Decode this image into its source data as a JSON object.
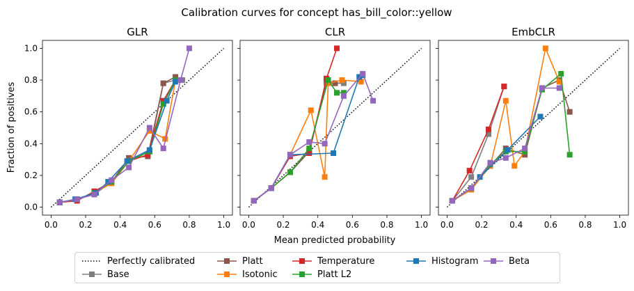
{
  "figure": {
    "title": "Calibration curves for concept has_bill_color::yellow",
    "xlabel": "Mean predicted probability",
    "ylabel": "Fraction of positives"
  },
  "colors": {
    "Perfectly calibrated": "#000000",
    "Base": "#7f7f7f",
    "Platt": "#8c564b",
    "Isotonic": "#ff7f0e",
    "Temperature": "#d62728",
    "Platt L2": "#2ca02c",
    "Histogram": "#1f77b4",
    "Beta": "#9467bd"
  },
  "legend": {
    "placement": "bottom-center",
    "entries": [
      {
        "label": "Perfectly calibrated",
        "style": "dotted"
      },
      {
        "label": "Base",
        "style": "square-line"
      },
      {
        "label": "Platt",
        "style": "square-line"
      },
      {
        "label": "Isotonic",
        "style": "square-line"
      },
      {
        "label": "Temperature",
        "style": "square-line"
      },
      {
        "label": "Platt L2",
        "style": "square-line"
      },
      {
        "label": "Histogram",
        "style": "square-line"
      },
      {
        "label": "Beta",
        "style": "square-line"
      }
    ]
  },
  "chart_data": [
    {
      "type": "line",
      "title": "GLR",
      "xlim": [
        -0.05,
        1.05
      ],
      "ylim": [
        -0.05,
        1.05
      ],
      "xticks": [
        0.0,
        0.2,
        0.4,
        0.6,
        0.8,
        1.0
      ],
      "xtick_labels": [
        "0.0",
        "0.2",
        "0.4",
        "0.6",
        "0.8",
        "1.0"
      ],
      "yticks": [
        0.0,
        0.2,
        0.4,
        0.6,
        0.8,
        1.0
      ],
      "ytick_labels": [
        "0.0",
        "0.2",
        "0.4",
        "0.6",
        "0.8",
        "1.0"
      ],
      "show_yticklabels": true,
      "grid": false,
      "reference": {
        "name": "Perfectly calibrated",
        "x": [
          0,
          1
        ],
        "y": [
          0,
          1
        ]
      },
      "series": [
        {
          "name": "Base",
          "x": [
            0.05,
            0.15,
            0.25,
            0.35,
            0.45,
            0.57,
            0.65,
            0.72,
            0.76
          ],
          "y": [
            0.03,
            0.05,
            0.08,
            0.16,
            0.29,
            0.35,
            0.78,
            0.8,
            0.8
          ]
        },
        {
          "name": "Platt",
          "x": [
            0.05,
            0.15,
            0.25,
            0.35,
            0.45,
            0.56,
            0.65,
            0.72
          ],
          "y": [
            0.03,
            0.05,
            0.09,
            0.16,
            0.31,
            0.32,
            0.78,
            0.82
          ]
        },
        {
          "name": "Isotonic",
          "x": [
            0.05,
            0.15,
            0.25,
            0.35,
            0.45,
            0.57,
            0.66,
            0.72
          ],
          "y": [
            0.03,
            0.05,
            0.09,
            0.15,
            0.29,
            0.48,
            0.43,
            0.8
          ]
        },
        {
          "name": "Temperature",
          "x": [
            0.05,
            0.15,
            0.25,
            0.35,
            0.45,
            0.56,
            0.65,
            0.72
          ],
          "y": [
            0.03,
            0.04,
            0.1,
            0.16,
            0.29,
            0.33,
            0.67,
            0.8
          ]
        },
        {
          "name": "Platt L2",
          "x": [
            0.05,
            0.15,
            0.25,
            0.35,
            0.45,
            0.57,
            0.65,
            0.72
          ],
          "y": [
            0.03,
            0.05,
            0.09,
            0.16,
            0.29,
            0.35,
            0.65,
            0.8
          ]
        },
        {
          "name": "Histogram",
          "x": [
            0.05,
            0.14,
            0.26,
            0.33,
            0.44,
            0.57,
            0.67,
            0.72
          ],
          "y": [
            0.03,
            0.05,
            0.09,
            0.16,
            0.29,
            0.36,
            0.67,
            0.79
          ]
        },
        {
          "name": "Beta",
          "x": [
            0.05,
            0.15,
            0.25,
            0.35,
            0.45,
            0.57,
            0.65,
            0.75,
            0.8
          ],
          "y": [
            0.03,
            0.05,
            0.08,
            0.17,
            0.25,
            0.5,
            0.37,
            0.8,
            1.0
          ]
        }
      ]
    },
    {
      "type": "line",
      "title": "CLR",
      "xlim": [
        -0.05,
        1.05
      ],
      "ylim": [
        -0.05,
        1.05
      ],
      "xticks": [
        0.0,
        0.2,
        0.4,
        0.6,
        0.8,
        1.0
      ],
      "xtick_labels": [
        "0.0",
        "0.2",
        "0.4",
        "0.6",
        "0.8",
        "1.0"
      ],
      "yticks": [
        0.0,
        0.2,
        0.4,
        0.6,
        0.8,
        1.0
      ],
      "ytick_labels": [
        "0.0",
        "0.2",
        "0.4",
        "0.6",
        "0.8",
        "1.0"
      ],
      "show_yticklabels": false,
      "grid": false,
      "reference": {
        "name": "Perfectly calibrated",
        "x": [
          0,
          1
        ],
        "y": [
          0,
          1
        ]
      },
      "series": [
        {
          "name": "Base",
          "x": [
            0.03,
            0.13,
            0.24,
            0.35,
            0.45,
            0.5,
            0.55
          ],
          "y": [
            0.04,
            0.12,
            0.22,
            0.35,
            0.78,
            0.78,
            0.78
          ]
        },
        {
          "name": "Platt",
          "x": [
            0.03,
            0.13,
            0.24,
            0.35,
            0.45,
            0.5
          ],
          "y": [
            0.04,
            0.12,
            0.22,
            0.35,
            0.8,
            0.78
          ]
        },
        {
          "name": "Isotonic",
          "x": [
            0.03,
            0.13,
            0.24,
            0.36,
            0.44,
            0.46,
            0.54,
            0.65
          ],
          "y": [
            0.04,
            0.12,
            0.33,
            0.61,
            0.19,
            0.78,
            0.8,
            0.79
          ]
        },
        {
          "name": "Temperature",
          "x": [
            0.03,
            0.13,
            0.24,
            0.35,
            0.45,
            0.51
          ],
          "y": [
            0.04,
            0.12,
            0.32,
            0.34,
            0.81,
            1.0
          ]
        },
        {
          "name": "Platt L2",
          "x": [
            0.03,
            0.13,
            0.24,
            0.35,
            0.46,
            0.51,
            0.55
          ],
          "y": [
            0.04,
            0.12,
            0.22,
            0.37,
            0.8,
            0.72,
            0.72
          ]
        },
        {
          "name": "Histogram",
          "x": [
            0.03,
            0.13,
            0.24,
            0.49,
            0.64,
            0.66
          ],
          "y": [
            0.04,
            0.12,
            0.33,
            0.34,
            0.82,
            0.83
          ]
        },
        {
          "name": "Beta",
          "x": [
            0.03,
            0.13,
            0.24,
            0.35,
            0.44,
            0.55,
            0.66,
            0.72
          ],
          "y": [
            0.04,
            0.12,
            0.33,
            0.41,
            0.4,
            0.7,
            0.84,
            0.67
          ]
        }
      ]
    },
    {
      "type": "line",
      "title": "EmbCLR",
      "xlim": [
        -0.05,
        1.05
      ],
      "ylim": [
        -0.05,
        1.05
      ],
      "xticks": [
        0.0,
        0.2,
        0.4,
        0.6,
        0.8,
        1.0
      ],
      "xtick_labels": [
        "0.0",
        "0.2",
        "0.4",
        "0.6",
        "0.8",
        "1.0"
      ],
      "yticks": [
        0.0,
        0.2,
        0.4,
        0.6,
        0.8,
        1.0
      ],
      "ytick_labels": [
        "0.0",
        "0.2",
        "0.4",
        "0.6",
        "0.8",
        "1.0"
      ],
      "show_yticklabels": false,
      "grid": false,
      "reference": {
        "name": "Perfectly calibrated",
        "x": [
          0,
          1
        ],
        "y": [
          0,
          1
        ]
      },
      "series": [
        {
          "name": "Base",
          "x": [
            0.03,
            0.14,
            0.24,
            0.33
          ],
          "y": [
            0.04,
            0.19,
            0.46,
            0.76
          ]
        },
        {
          "name": "Platt",
          "x": [
            0.03,
            0.14,
            0.25,
            0.34,
            0.45,
            0.55,
            0.65,
            0.71
          ],
          "y": [
            0.04,
            0.12,
            0.26,
            0.37,
            0.33,
            0.75,
            0.8,
            0.6
          ]
        },
        {
          "name": "Isotonic",
          "x": [
            0.03,
            0.14,
            0.25,
            0.34,
            0.39,
            0.45,
            0.57,
            0.65
          ],
          "y": [
            0.04,
            0.11,
            0.26,
            0.67,
            0.26,
            0.35,
            1.0,
            0.79
          ]
        },
        {
          "name": "Temperature",
          "x": [
            0.03,
            0.13,
            0.24,
            0.33
          ],
          "y": [
            0.04,
            0.23,
            0.49,
            0.76
          ]
        },
        {
          "name": "Platt L2",
          "x": [
            0.03,
            0.14,
            0.25,
            0.34,
            0.45,
            0.55,
            0.66,
            0.71
          ],
          "y": [
            0.04,
            0.12,
            0.27,
            0.35,
            0.35,
            0.74,
            0.84,
            0.33
          ]
        },
        {
          "name": "Histogram",
          "x": [
            0.03,
            0.14,
            0.19,
            0.35,
            0.54
          ],
          "y": [
            0.04,
            0.12,
            0.19,
            0.36,
            0.57
          ]
        },
        {
          "name": "Beta",
          "x": [
            0.03,
            0.14,
            0.25,
            0.34,
            0.45,
            0.55,
            0.65
          ],
          "y": [
            0.04,
            0.12,
            0.28,
            0.31,
            0.37,
            0.75,
            0.75
          ]
        }
      ]
    }
  ]
}
